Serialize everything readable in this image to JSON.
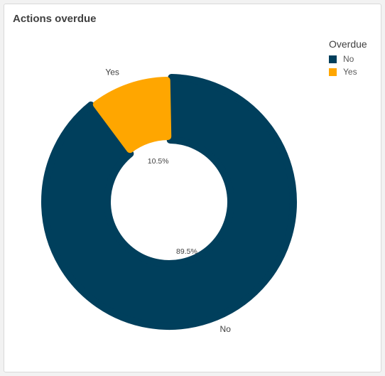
{
  "chart_data": {
    "type": "pie",
    "title": "Actions overdue",
    "legend_title": "Overdue",
    "legend_position": "top-right",
    "donut": true,
    "slices": [
      {
        "label": "No",
        "value": 89.5,
        "value_label": "89.5%",
        "color": "#003f5c"
      },
      {
        "label": "Yes",
        "value": 10.5,
        "value_label": "10.5%",
        "color": "#ffa600"
      }
    ]
  }
}
